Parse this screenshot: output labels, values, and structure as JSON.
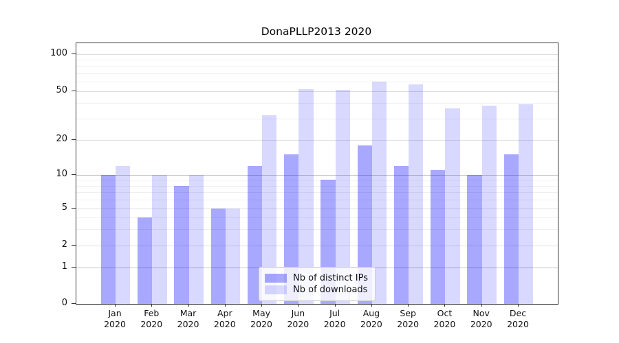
{
  "chart_data": {
    "type": "bar",
    "title": "DonaPLLP2013 2020",
    "months": [
      "Jan",
      "Feb",
      "Mar",
      "Apr",
      "May",
      "Jun",
      "Jul",
      "Aug",
      "Sep",
      "Oct",
      "Nov",
      "Dec"
    ],
    "year": "2020",
    "categories": [
      "Jan 2020",
      "Feb 2020",
      "Mar 2020",
      "Apr 2020",
      "May 2020",
      "Jun 2020",
      "Jul 2020",
      "Aug 2020",
      "Sep 2020",
      "Oct 2020",
      "Nov 2020",
      "Dec 2020"
    ],
    "series": [
      {
        "name": "Nb of distinct IPs",
        "color": "rgba(0,0,255,0.34)",
        "values": [
          10,
          4,
          8,
          5,
          12,
          15,
          9,
          18,
          12,
          11,
          10,
          15
        ]
      },
      {
        "name": "Nb of downloads",
        "color": "rgba(0,0,255,0.15)",
        "values": [
          12,
          10,
          10,
          5,
          32,
          52,
          51,
          60,
          57,
          36,
          38,
          39
        ]
      }
    ],
    "yscale": "symlog",
    "yticks": [
      0,
      1,
      2,
      5,
      10,
      20,
      50,
      100
    ],
    "ytick_labels": [
      "0",
      "1",
      "2",
      "5",
      "10",
      "20",
      "50",
      "100"
    ],
    "minor_yticks": [
      3,
      4,
      6,
      7,
      8,
      9,
      30,
      40,
      60,
      70,
      80,
      90
    ],
    "ylim": [
      0,
      120
    ],
    "grid": true,
    "legend_position": "lower center"
  },
  "colors": {
    "bar_ips_on_white": "#a8a8f1",
    "bar_downloads_on_white": "#dcdcfb",
    "grid_major": "#dedede",
    "grid_emphasis": "#c2c2c2",
    "grid_minor": "#efefef",
    "spine": "#333333"
  }
}
